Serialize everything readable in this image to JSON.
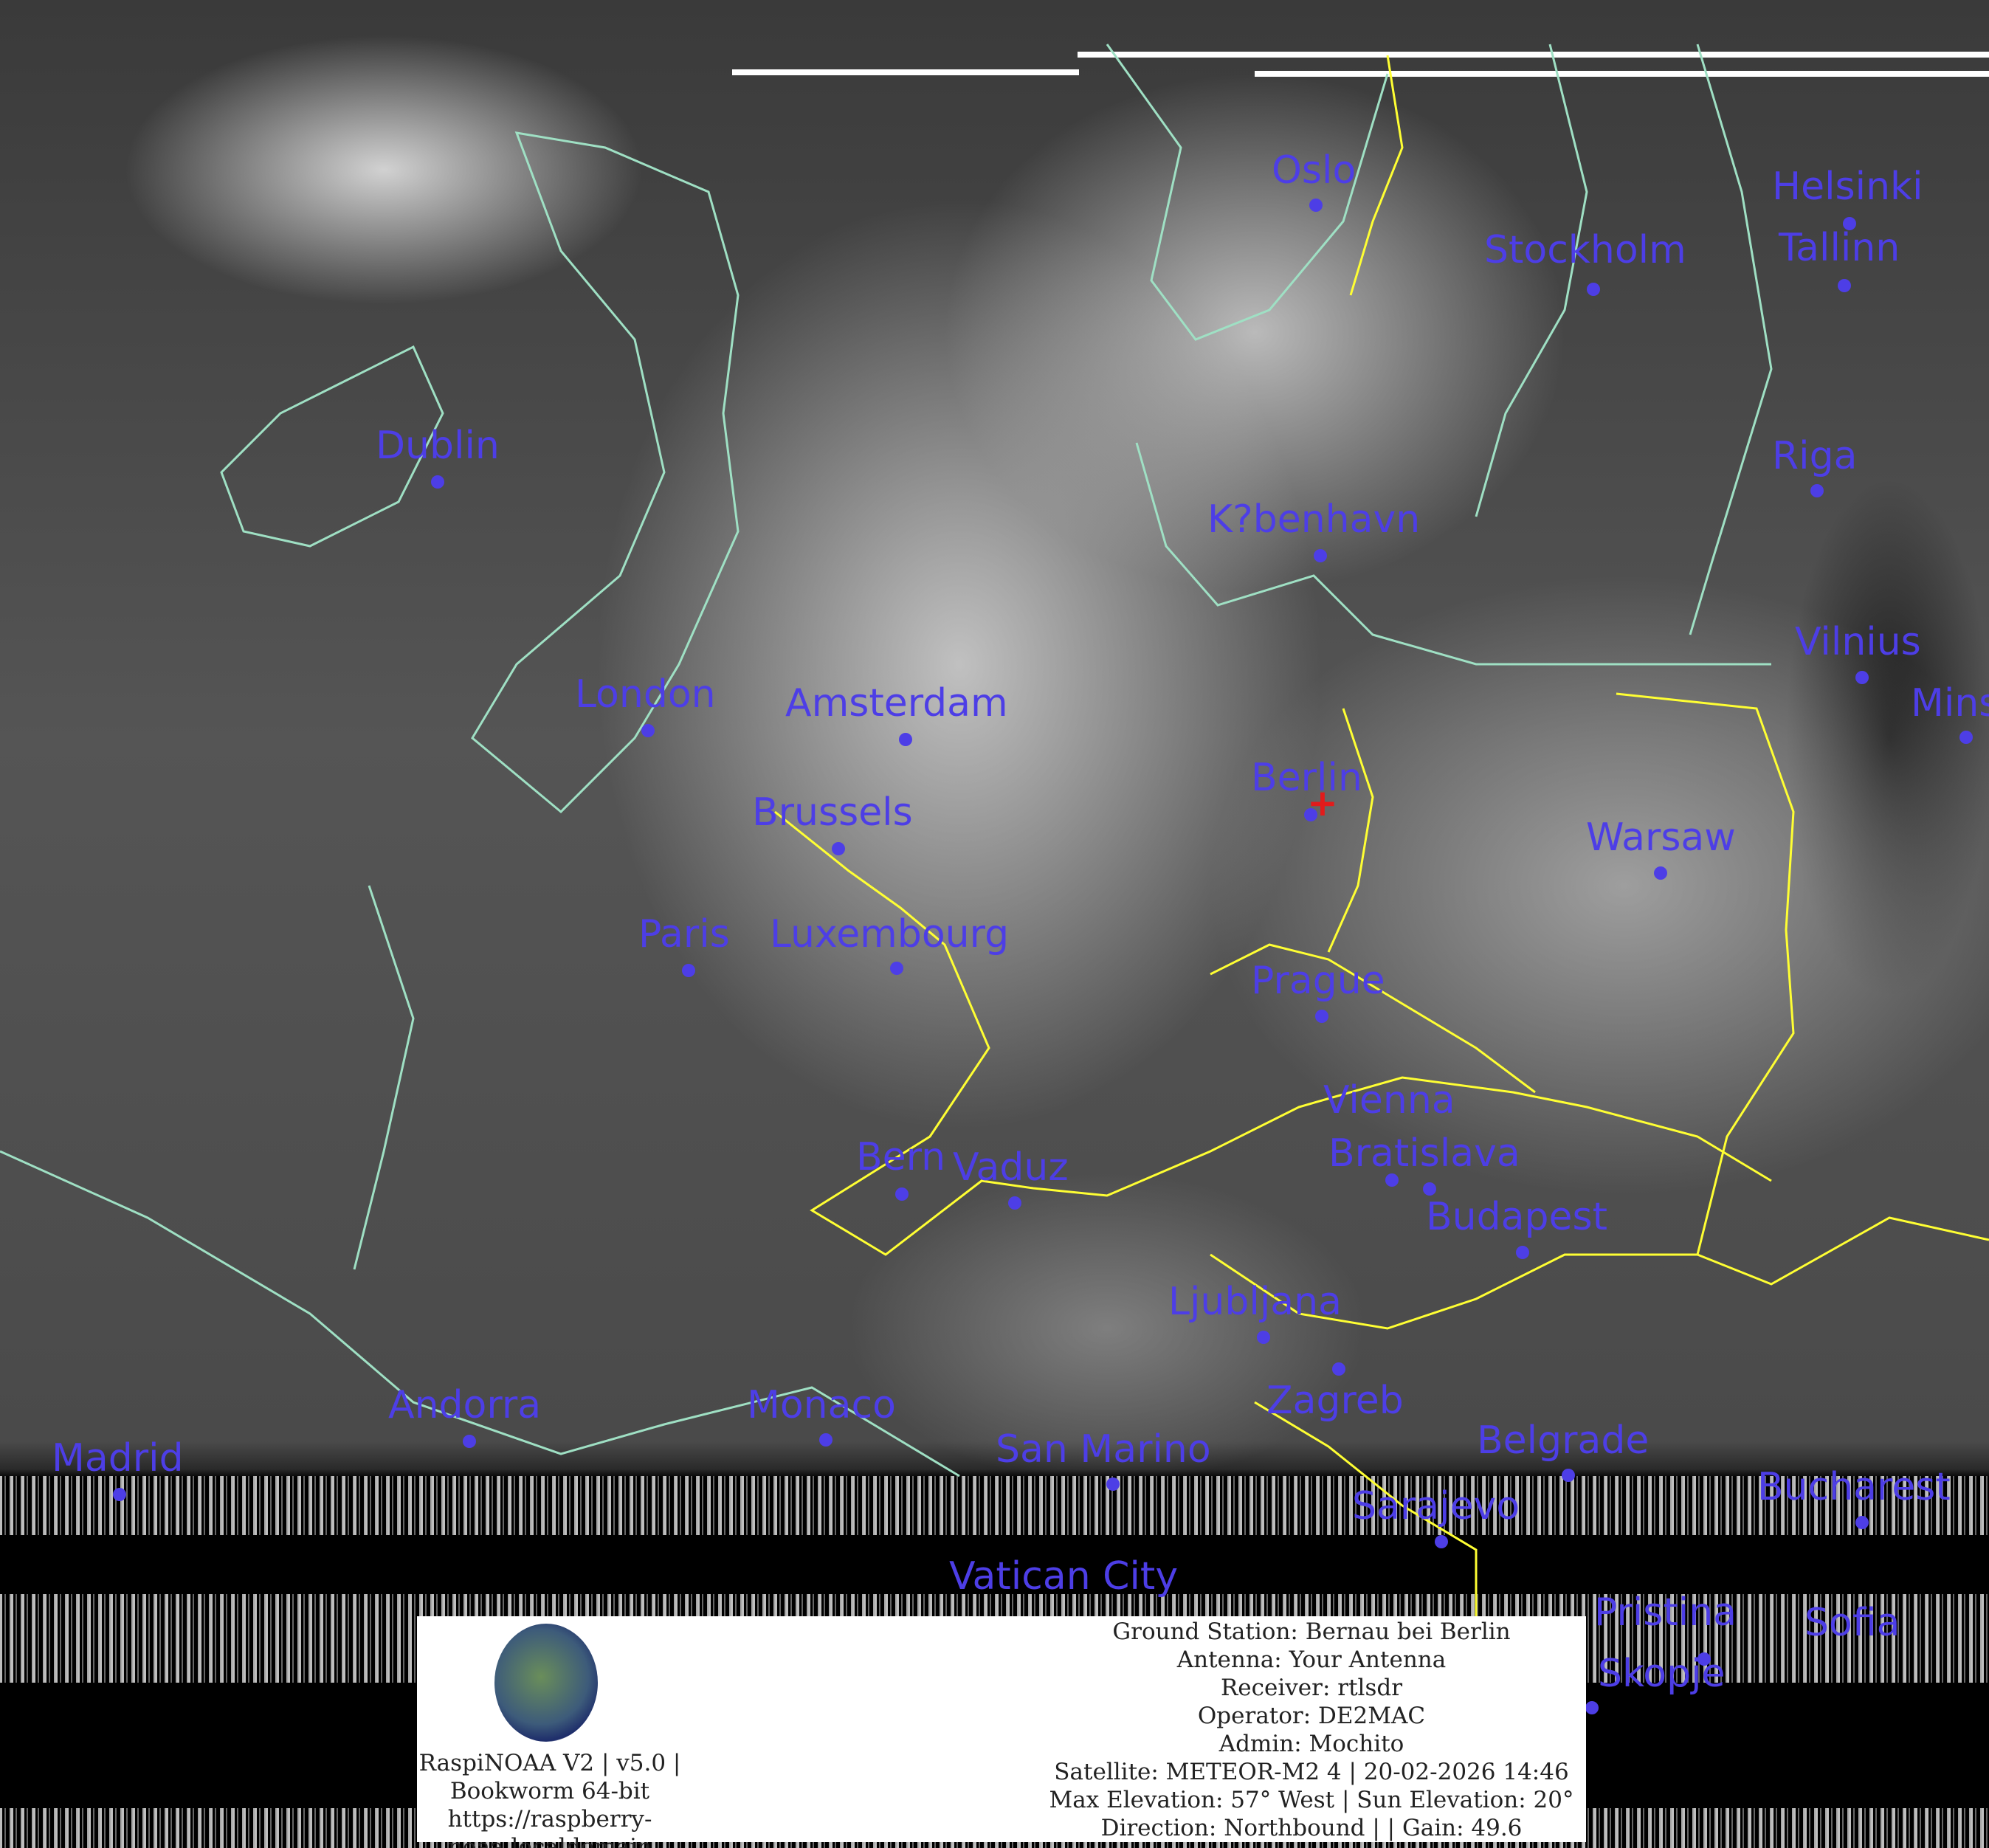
{
  "cities": [
    {
      "name": "Oslo"
    },
    {
      "name": "Helsinki"
    },
    {
      "name": "Stockholm"
    },
    {
      "name": "Tallinn"
    },
    {
      "name": "Dublin"
    },
    {
      "name": "Riga"
    },
    {
      "name": "K?benhavn"
    },
    {
      "name": "Vilnius"
    },
    {
      "name": "Mins"
    },
    {
      "name": "London"
    },
    {
      "name": "Amsterdam"
    },
    {
      "name": "Berlin"
    },
    {
      "name": "Brussels"
    },
    {
      "name": "Warsaw"
    },
    {
      "name": "Paris"
    },
    {
      "name": "Luxembourg"
    },
    {
      "name": "Prague"
    },
    {
      "name": "Vienna"
    },
    {
      "name": "Bratislava"
    },
    {
      "name": "Bern"
    },
    {
      "name": "Vaduz"
    },
    {
      "name": "Budapest"
    },
    {
      "name": "Ljubljana"
    },
    {
      "name": "Zagreb"
    },
    {
      "name": "Andorra"
    },
    {
      "name": "Monaco"
    },
    {
      "name": "Madrid"
    },
    {
      "name": "San Marino"
    },
    {
      "name": "Belgrade"
    },
    {
      "name": "Bucharest"
    },
    {
      "name": "Sarajevo"
    },
    {
      "name": "Sofia"
    },
    {
      "name": "Vatican City"
    },
    {
      "name": "Pristina"
    },
    {
      "name": "Skopje"
    }
  ],
  "colors": {
    "city_label": "#4d3ee6",
    "ground_station_marker": "#e21b1b",
    "coastline": "#9fe0c4",
    "border": "#ffff33"
  },
  "panel": {
    "logo": "RaspiNOAA V2 logo",
    "left_lines": [
      "RaspiNOAA V2 | v5.0 |",
      "Bookworm 64-bit",
      "https://raspberry-",
      "noaa.localdomain"
    ],
    "right_lines": [
      "Ground Station: Bernau bei Berlin",
      "Antenna: Your Antenna",
      "Receiver: rtlsdr",
      "Operator: DE2MAC",
      "Admin: Mochito",
      "Satellite: METEOR-M2 4 | 20-02-2026 14:46",
      "Max Elevation: 57° West | Sun Elevation: 20°",
      "Direction: Northbound | | Gain: 49.6"
    ]
  }
}
